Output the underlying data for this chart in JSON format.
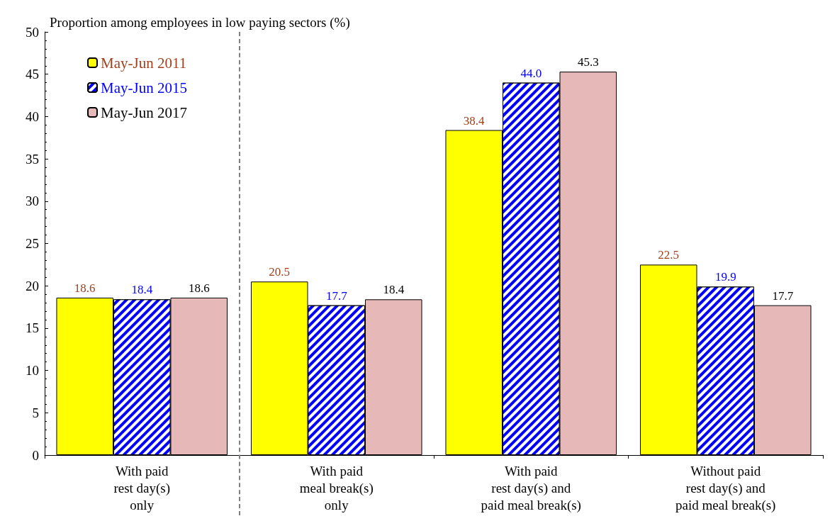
{
  "chart_data": {
    "type": "bar",
    "ylabel": "Proportion among employees in low paying sectors (%)",
    "categories": [
      "With paid\nrest day(s)\nonly",
      "With paid\nmeal break(s)\nonly",
      "With paid\nrest day(s) and\npaid meal break(s)",
      "Without paid\nrest day(s) and\npaid meal break(s)"
    ],
    "series": [
      {
        "name": "May-Jun 2011",
        "color": "#ffff00",
        "values": [
          18.6,
          20.5,
          38.4,
          22.5
        ],
        "value_labels": [
          "18.6",
          "20.5",
          "38.4",
          "22.5"
        ]
      },
      {
        "name": "May-Jun 2015",
        "color": "#0000ff",
        "values": [
          18.4,
          17.7,
          44.0,
          19.9
        ],
        "value_labels": [
          "18.4",
          "17.7",
          "44.0",
          "19.9"
        ]
      },
      {
        "name": "May-Jun 2017",
        "color": "#e6b8b7",
        "values": [
          18.6,
          18.4,
          45.3,
          17.7
        ],
        "value_labels": [
          "18.6",
          "18.4",
          "45.3",
          "17.7"
        ]
      }
    ],
    "ylim": [
      0,
      50
    ],
    "yticks": [
      0,
      5,
      10,
      15,
      20,
      25,
      30,
      35,
      40,
      45,
      50
    ],
    "legend": "top left",
    "grid": false
  }
}
